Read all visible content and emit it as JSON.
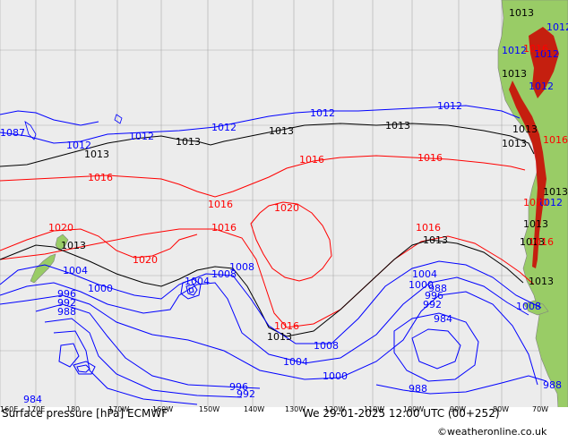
{
  "map": {
    "title": "Surface pressure [hPa] ECMWF",
    "valid_time": "We 29-01-2025 12:00 UTC (00+252)",
    "credit": "©weatheronline.co.uk",
    "credit_icon": "copyright-icon",
    "colors": {
      "ocean": "#ececec",
      "land": "#99cc66",
      "grid": "#a9a9a9",
      "isobar_low": "#0000ff",
      "isobar_1013": "#000000",
      "isobar_high": "#ff0000",
      "terrain_high": "#cc0000",
      "coast": "#808080"
    },
    "lon_ticks": [
      "160E",
      "170E",
      "180",
      "170W",
      "160W",
      "150W",
      "140W",
      "130W",
      "120W",
      "110W",
      "100W",
      "90W",
      "80W",
      "70W"
    ],
    "isobar_labels": [
      {
        "text": "1013",
        "color": "black"
      },
      {
        "text": "1013",
        "color": "black"
      },
      {
        "text": "1013",
        "color": "black"
      },
      {
        "text": "1013",
        "color": "black"
      },
      {
        "text": "1013",
        "color": "black"
      },
      {
        "text": "1013",
        "color": "black"
      },
      {
        "text": "1013",
        "color": "black"
      },
      {
        "text": "1013",
        "color": "black"
      },
      {
        "text": "1013",
        "color": "black"
      },
      {
        "text": "1013",
        "color": "black"
      },
      {
        "text": "1013",
        "color": "black"
      },
      {
        "text": "1013",
        "color": "black"
      },
      {
        "text": "1013",
        "color": "black"
      },
      {
        "text": "1013",
        "color": "black"
      },
      {
        "text": "1013",
        "color": "black"
      },
      {
        "text": "1012",
        "color": "blue"
      },
      {
        "text": "1012",
        "color": "blue"
      },
      {
        "text": "1012",
        "color": "blue"
      },
      {
        "text": "1012",
        "color": "blue"
      },
      {
        "text": "1012",
        "color": "blue"
      },
      {
        "text": "1012",
        "color": "blue"
      },
      {
        "text": "1012",
        "color": "blue"
      },
      {
        "text": "1012",
        "color": "blue"
      },
      {
        "text": "1012",
        "color": "blue"
      },
      {
        "text": "1012",
        "color": "blue"
      },
      {
        "text": "1008",
        "color": "blue"
      },
      {
        "text": "1008",
        "color": "blue"
      },
      {
        "text": "1008",
        "color": "blue"
      },
      {
        "text": "1008",
        "color": "blue"
      },
      {
        "text": "1004",
        "color": "blue"
      },
      {
        "text": "1004",
        "color": "blue"
      },
      {
        "text": "1004",
        "color": "blue"
      },
      {
        "text": "1004",
        "color": "blue"
      },
      {
        "text": "1000",
        "color": "blue"
      },
      {
        "text": "1000",
        "color": "blue"
      },
      {
        "text": "1000",
        "color": "blue"
      },
      {
        "text": "996",
        "color": "blue"
      },
      {
        "text": "996",
        "color": "blue"
      },
      {
        "text": "996",
        "color": "blue"
      },
      {
        "text": "992",
        "color": "blue"
      },
      {
        "text": "992",
        "color": "blue"
      },
      {
        "text": "992",
        "color": "blue"
      },
      {
        "text": "988",
        "color": "blue"
      },
      {
        "text": "988",
        "color": "blue"
      },
      {
        "text": "988",
        "color": "blue"
      },
      {
        "text": "988",
        "color": "blue"
      },
      {
        "text": "984",
        "color": "blue"
      },
      {
        "text": "984",
        "color": "blue"
      },
      {
        "text": "1016",
        "color": "red"
      },
      {
        "text": "1016",
        "color": "red"
      },
      {
        "text": "1016",
        "color": "red"
      },
      {
        "text": "1016",
        "color": "red"
      },
      {
        "text": "1016",
        "color": "red"
      },
      {
        "text": "1016",
        "color": "red"
      },
      {
        "text": "1016",
        "color": "red"
      },
      {
        "text": "1016",
        "color": "red"
      },
      {
        "text": "1016",
        "color": "red"
      },
      {
        "text": "1016",
        "color": "red"
      },
      {
        "text": "1020",
        "color": "red"
      },
      {
        "text": "1020",
        "color": "red"
      },
      {
        "text": "1020",
        "color": "red"
      },
      {
        "text": "1020",
        "color": "red"
      },
      {
        "text": "1087",
        "color": "blue"
      }
    ]
  }
}
